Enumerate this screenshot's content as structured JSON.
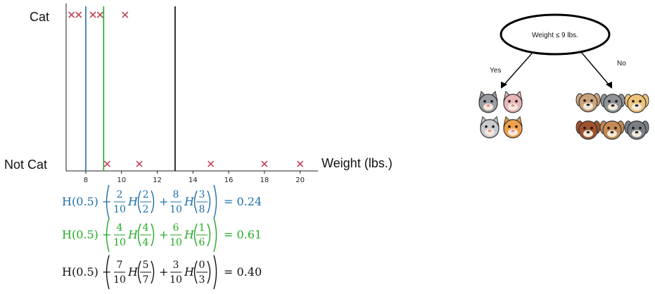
{
  "chart_data": {
    "type": "scatter",
    "xlabel": "Weight (lbs.)",
    "ylabel": "",
    "yticks": [
      "Cat",
      "Not Cat"
    ],
    "xticks": [
      8,
      10,
      12,
      14,
      16,
      18,
      20
    ],
    "xlim": [
      6.9,
      21
    ],
    "series": [
      {
        "label": "Cat",
        "x": [
          7.2,
          7.6,
          8.4,
          8.8,
          10.2
        ],
        "color": "#c0475a"
      },
      {
        "label": "Not Cat",
        "x": [
          9.2,
          11,
          15,
          18,
          20
        ],
        "color": "#c0475a"
      }
    ],
    "split_lines": [
      {
        "x": 8,
        "color": "#1f6fa8"
      },
      {
        "x": 9,
        "color": "#22aa22"
      },
      {
        "x": 13,
        "color": "#000000"
      }
    ],
    "grid": false
  },
  "equations": [
    {
      "color": "#1f6fa8",
      "lead": "H(0.5) − ",
      "w1": [
        "2",
        "10"
      ],
      "p1": [
        "2",
        "2"
      ],
      "w2": [
        "8",
        "10"
      ],
      "p2": [
        "3",
        "8"
      ],
      "result": "= 0.24"
    },
    {
      "color": "#22aa22",
      "lead": "H(0.5) − ",
      "w1": [
        "4",
        "10"
      ],
      "p1": [
        "4",
        "4"
      ],
      "w2": [
        "6",
        "10"
      ],
      "p2": [
        "1",
        "6"
      ],
      "result": "= 0.61"
    },
    {
      "color": "#111111",
      "lead": "H(0.5) − ",
      "w1": [
        "7",
        "10"
      ],
      "p1": [
        "5",
        "7"
      ],
      "w2": [
        "3",
        "10"
      ],
      "p2": [
        "0",
        "3"
      ],
      "result": "= 0.40"
    }
  ],
  "tree": {
    "root_label": "Weight ≤ 9 lbs.",
    "yes_label": "Yes",
    "no_label": "No",
    "left_icons": [
      "cat-gray-icon",
      "cat-pink-icon",
      "cat-white-icon",
      "cat-orange-icon"
    ],
    "right_icons": [
      "dog-pug-icon",
      "dog-gray-icon",
      "dog-golden-icon",
      "dog-brown-icon",
      "dog-tan-icon",
      "dog-gray-white-icon"
    ],
    "icon_colors": {
      "cat-gray-icon": "#9a9da3",
      "cat-pink-icon": "#e9b6b8",
      "cat-white-icon": "#c9cccf",
      "cat-orange-icon": "#f0a04b",
      "dog-pug-icon": "#c9a37a",
      "dog-gray-icon": "#8e9297",
      "dog-golden-icon": "#eec37a",
      "dog-brown-icon": "#a0522d",
      "dog-tan-icon": "#c68a52",
      "dog-gray-white-icon": "#7b8087"
    }
  }
}
